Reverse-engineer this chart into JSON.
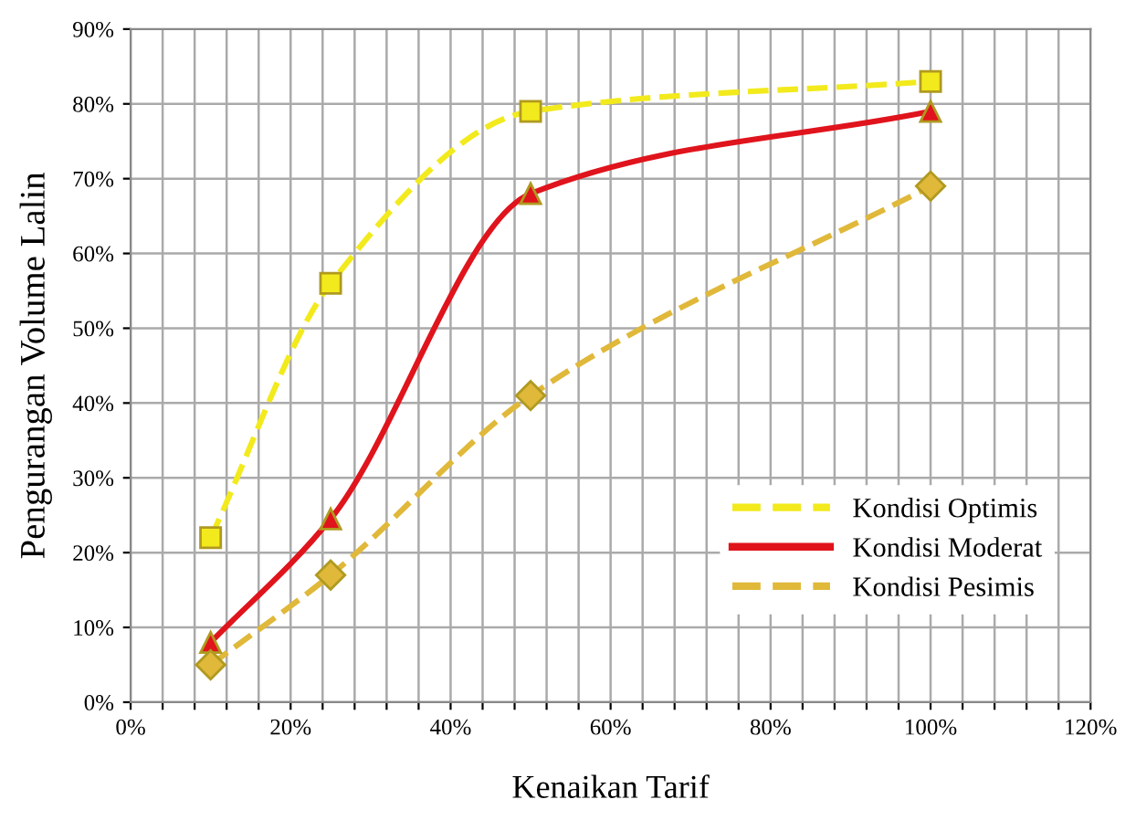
{
  "chart_data": {
    "type": "line",
    "xlabel": "Kenaikan Tarif",
    "ylabel": "Pengurangan Volume Lalin",
    "series": [
      {
        "name": "Kondisi Optimis",
        "color": "#f2ea1c",
        "marker": "square",
        "line_style": "dashed",
        "x": [
          10,
          25,
          50,
          100
        ],
        "values": [
          22,
          56,
          79,
          83
        ]
      },
      {
        "name": "Kondisi Moderat",
        "color": "#e0141c",
        "marker": "triangle",
        "line_style": "solid",
        "x": [
          10,
          25,
          50,
          100
        ],
        "values": [
          8,
          24.5,
          68,
          79
        ]
      },
      {
        "name": "Kondisi Pesimis",
        "color": "#e0b83a",
        "marker": "diamond",
        "line_style": "dashed",
        "x": [
          10,
          25,
          50,
          100
        ],
        "values": [
          5,
          17,
          41,
          69
        ]
      }
    ],
    "xlim": [
      0,
      120
    ],
    "xticks": [
      {
        "value": 0,
        "label": "0%"
      },
      {
        "value": 4,
        "label": null
      },
      {
        "value": 8,
        "label": null
      },
      {
        "value": 12,
        "label": null
      },
      {
        "value": 16,
        "label": null
      },
      {
        "value": 20,
        "label": "20%"
      },
      {
        "value": 24,
        "label": null
      },
      {
        "value": 28,
        "label": null
      },
      {
        "value": 32,
        "label": null
      },
      {
        "value": 36,
        "label": null
      },
      {
        "value": 40,
        "label": "40%"
      },
      {
        "value": 44,
        "label": null
      },
      {
        "value": 48,
        "label": null
      },
      {
        "value": 52,
        "label": null
      },
      {
        "value": 56,
        "label": null
      },
      {
        "value": 60,
        "label": "60%"
      },
      {
        "value": 64,
        "label": null
      },
      {
        "value": 68,
        "label": null
      },
      {
        "value": 72,
        "label": null
      },
      {
        "value": 76,
        "label": null
      },
      {
        "value": 80,
        "label": "80%"
      },
      {
        "value": 84,
        "label": null
      },
      {
        "value": 88,
        "label": null
      },
      {
        "value": 92,
        "label": null
      },
      {
        "value": 96,
        "label": null
      },
      {
        "value": 100,
        "label": "100%"
      },
      {
        "value": 104,
        "label": null
      },
      {
        "value": 108,
        "label": null
      },
      {
        "value": 112,
        "label": null
      },
      {
        "value": 116,
        "label": null
      },
      {
        "value": 120,
        "label": "120%"
      }
    ],
    "ylim": [
      0,
      90
    ],
    "yticks": [
      {
        "value": 0,
        "label": "0%"
      },
      {
        "value": 10,
        "label": "10%"
      },
      {
        "value": 20,
        "label": "20%"
      },
      {
        "value": 30,
        "label": "30%"
      },
      {
        "value": 40,
        "label": "40%"
      },
      {
        "value": 50,
        "label": "50%"
      },
      {
        "value": 60,
        "label": "60%"
      },
      {
        "value": 70,
        "label": "70%"
      },
      {
        "value": 80,
        "label": "80%"
      },
      {
        "value": 90,
        "label": "90%"
      }
    ],
    "grid": true,
    "legend": "lower right"
  }
}
